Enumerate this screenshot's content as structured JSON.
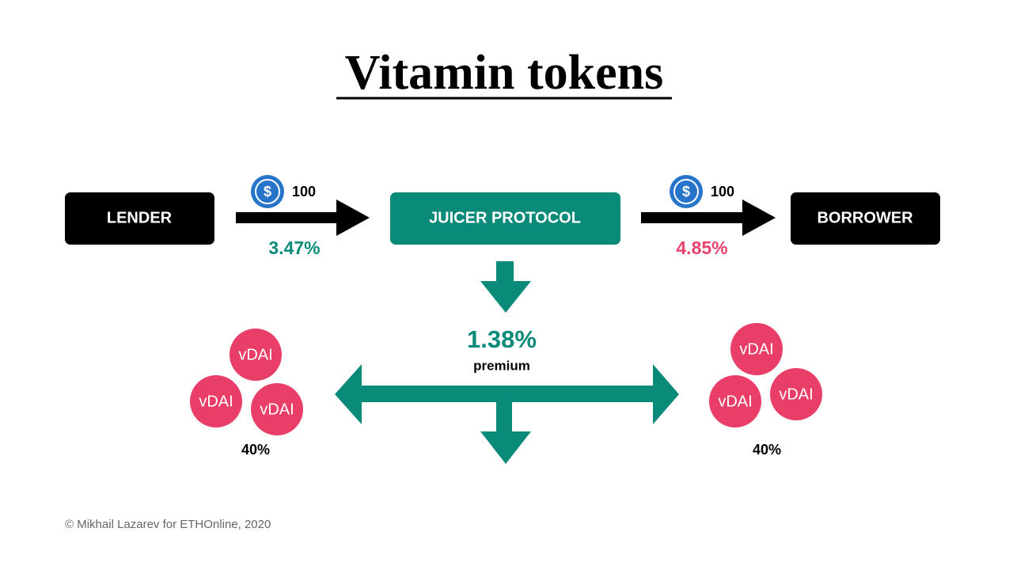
{
  "title": "Vitamin tokens",
  "nodes": [
    {
      "label": "LENDER"
    },
    {
      "label": "JUICER PROTOCOL"
    },
    {
      "label": "BORROWER"
    }
  ],
  "transfers": [
    {
      "coin": "$",
      "amount": "100",
      "rate": "3.47%"
    },
    {
      "coin": "$",
      "amount": "100",
      "rate": "4.85%"
    }
  ],
  "premium": {
    "rate": "1.38%",
    "label": "premium"
  },
  "token_groups": [
    {
      "tokens": [
        "vDAI",
        "vDAI",
        "vDAI"
      ],
      "share": "40%"
    },
    {
      "tokens": [
        "vDAI",
        "vDAI",
        "vDAI"
      ],
      "share": "40%"
    }
  ],
  "footer": "© Mikhail Lazarev for ETHOnline, 2020"
}
